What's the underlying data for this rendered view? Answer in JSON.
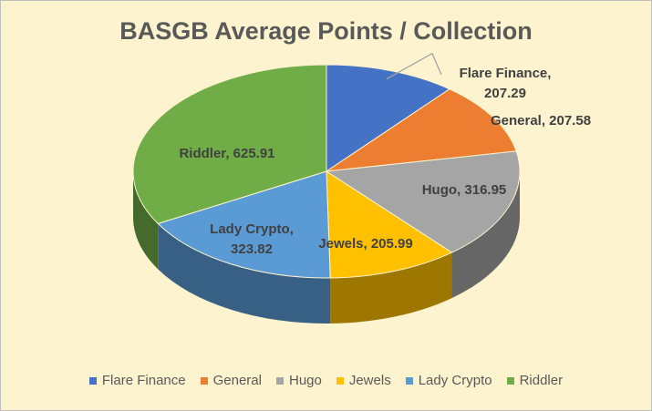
{
  "chart_data": {
    "type": "pie3d",
    "title": "BASGB Average Points / Collection",
    "categories": [
      "Flare Finance",
      "General",
      "Hugo",
      "Jewels",
      "Lady Crypto",
      "Riddler"
    ],
    "values": [
      207.29,
      207.58,
      316.95,
      205.99,
      323.82,
      625.91
    ],
    "value_labels": [
      "Flare Finance, 207.29",
      "General, 207.58",
      "Hugo, 316.95",
      "Jewels, 205.99",
      "Lady Crypto, 323.82",
      "Riddler, 625.91"
    ],
    "colors": [
      "#4472c4",
      "#ed7d31",
      "#a5a5a5",
      "#ffc000",
      "#5b9bd5",
      "#70ad47"
    ],
    "legend": "bottom"
  }
}
